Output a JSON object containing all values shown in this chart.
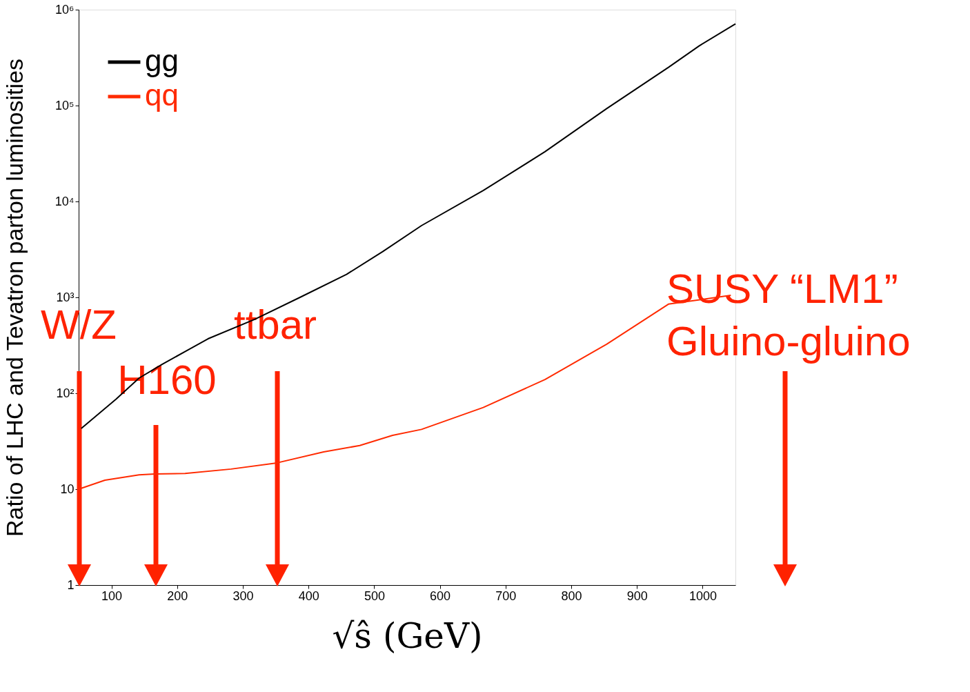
{
  "chart_data": {
    "type": "line",
    "xlabel": "√ŝ  (GeV)",
    "ylabel": "Ratio of LHC and Tevatron parton luminosities",
    "xlim": [
      50,
      1050
    ],
    "xticks": [
      100,
      200,
      300,
      400,
      500,
      600,
      700,
      800,
      900,
      1000
    ],
    "ylim": [
      1,
      1000000
    ],
    "log": "y",
    "yticks": [
      {
        "value": 1,
        "label": "1"
      },
      {
        "value": 10,
        "label": "10"
      },
      {
        "value": 100,
        "label": "10²"
      },
      {
        "value": 1000,
        "label": "10³"
      },
      {
        "value": 10000,
        "label": "10⁴"
      },
      {
        "value": 100000,
        "label": "10⁵"
      },
      {
        "value": 1000000,
        "label": "10⁶"
      }
    ],
    "grid": false,
    "legend": "top left",
    "series": [
      {
        "name": "gg",
        "color": "#000000",
        "x": [
          54,
          107,
          142,
          177,
          247,
          318,
          387,
          458,
          513,
          572,
          666,
          760,
          854,
          948,
          995,
          1050
        ],
        "values": [
          43,
          87,
          144,
          200,
          370,
          590,
          1000,
          1740,
          3000,
          5600,
          13000,
          33000,
          93000,
          250000,
          420000,
          710000
        ]
      },
      {
        "name": "qq",
        "color": "#ff2a00",
        "x": [
          54,
          90,
          142,
          166,
          212,
          282,
          352,
          423,
          478,
          528,
          572,
          666,
          760,
          854,
          948,
          1043
        ],
        "values": [
          10.2,
          12.4,
          14.1,
          14.4,
          14.6,
          16.2,
          18.8,
          24.5,
          28.5,
          36.4,
          42,
          71,
          139,
          325,
          850,
          1050
        ]
      }
    ],
    "annotations": [
      "W/Z",
      "H160",
      "ttbar",
      "SUSY “LM1”\nGluino-gluino"
    ]
  }
}
